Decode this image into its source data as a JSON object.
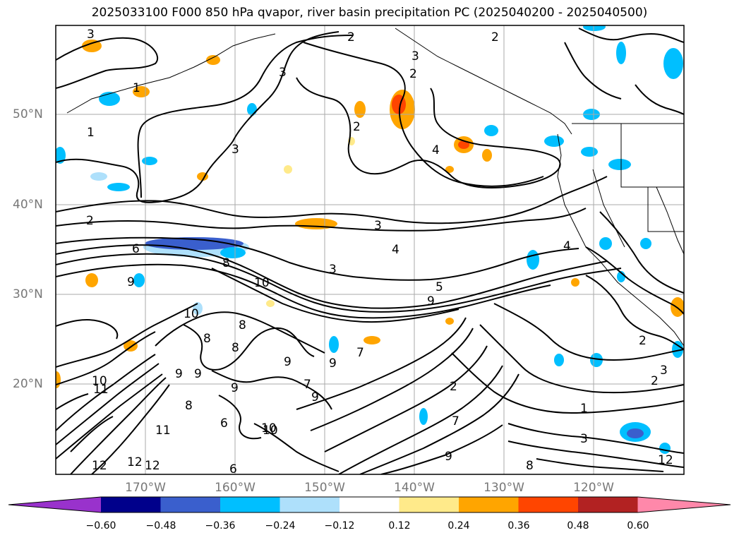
{
  "title": "2025033100 F000 850 hPa qvapor, river basin precipitation PC (2025040200 - 2025040500)",
  "lat_labels": [
    "50°N",
    "40°N",
    "30°N",
    "20°N"
  ],
  "lon_labels": [
    "170°W",
    "160°W",
    "150°W",
    "140°W",
    "130°W",
    "120°W"
  ],
  "contour_labels": [
    "3",
    "2",
    "2",
    "3",
    "2",
    "3",
    "1",
    "1",
    "3",
    "2",
    "4",
    "2",
    "6",
    "8",
    "10",
    "3",
    "4",
    "5",
    "9",
    "4",
    "3",
    "10",
    "8",
    "8",
    "9",
    "9",
    "8",
    "9",
    "7",
    "9",
    "10",
    "11",
    "12",
    "8",
    "9",
    "6",
    "10",
    "12",
    "6",
    "9",
    "7",
    "7",
    "2",
    "1",
    "2",
    "3",
    "3",
    "2",
    "9",
    "9",
    "10",
    "12",
    "8",
    "11",
    "12"
  ],
  "colorbar": {
    "tick_labels": [
      "−0.60",
      "−0.48",
      "−0.36",
      "−0.24",
      "−0.12",
      "0.12",
      "0.24",
      "0.36",
      "0.48",
      "0.60"
    ],
    "colors": [
      "#9932cc",
      "#00008b",
      "#3a5fcd",
      "#00bfff",
      "#aee0fb",
      "#ffffff",
      "#ffea8a",
      "#ffa500",
      "#ff4500",
      "#b22222",
      "#ff88aa"
    ]
  }
}
